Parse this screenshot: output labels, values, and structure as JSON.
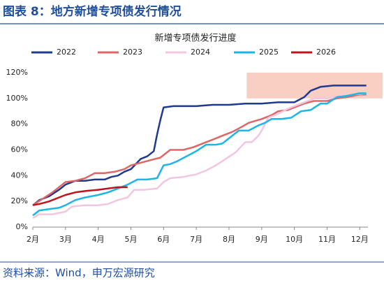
{
  "header": {
    "title": "图表 8：地方新增专项债发行情况"
  },
  "chart_data": {
    "type": "line",
    "title": "新增专项债发行进度",
    "xlim": [
      2,
      12.25
    ],
    "xticks": [
      {
        "value": 2,
        "label": "2月"
      },
      {
        "value": 3,
        "label": "3月"
      },
      {
        "value": 4,
        "label": "4月"
      },
      {
        "value": 5,
        "label": "5月"
      },
      {
        "value": 6,
        "label": "6月"
      },
      {
        "value": 7,
        "label": "7月"
      },
      {
        "value": 8,
        "label": "8月"
      },
      {
        "value": 9,
        "label": "9月"
      },
      {
        "value": 10,
        "label": "10月"
      },
      {
        "value": 11,
        "label": "11月"
      },
      {
        "value": 12,
        "label": "12月"
      }
    ],
    "ylim": [
      0,
      120
    ],
    "yticks": [
      {
        "value": 0,
        "label": "0%"
      },
      {
        "value": 20,
        "label": "20%"
      },
      {
        "value": 40,
        "label": "40%"
      },
      {
        "value": 60,
        "label": "60%"
      },
      {
        "value": 80,
        "label": "80%"
      },
      {
        "value": 100,
        "label": "100%"
      },
      {
        "value": 120,
        "label": "120%"
      }
    ],
    "grid": false,
    "legend": "top",
    "shaded_region": {
      "x": [
        8.54,
        12.7
      ],
      "y": [
        100,
        120
      ],
      "color": "#f9cfc3"
    },
    "series": [
      {
        "name": "2022",
        "color": "#1f3a8f",
        "x": [
          2,
          2.2,
          2.5,
          2.8,
          3.0,
          3.3,
          3.6,
          3.9,
          4.2,
          4.4,
          4.6,
          4.8,
          5.0,
          5.3,
          5.5,
          5.7,
          5.8,
          5.9,
          6.0,
          6.3,
          7.0,
          7.5,
          8.0,
          8.5,
          9.0,
          9.5,
          10.0,
          10.3,
          10.5,
          10.8,
          11.2,
          11.6,
          12.0,
          12.2
        ],
        "values": [
          17,
          21,
          24,
          29,
          33,
          36,
          36,
          37,
          37,
          39,
          40,
          43,
          45,
          53,
          55,
          59,
          72,
          83,
          93,
          94,
          94,
          95,
          95,
          96,
          96,
          97,
          97,
          101,
          106,
          109,
          110,
          110,
          110,
          110
        ]
      },
      {
        "name": "2023",
        "color": "#e06666",
        "x": [
          2,
          2.3,
          2.6,
          3.0,
          3.3,
          3.6,
          3.9,
          4.2,
          4.5,
          4.8,
          5.0,
          5.3,
          5.6,
          5.9,
          6.0,
          6.2,
          6.6,
          6.9,
          7.2,
          7.5,
          7.8,
          8.1,
          8.4,
          8.6,
          9.0,
          9.3,
          9.5,
          9.8,
          10.0,
          10.3,
          10.6,
          11.0,
          11.3,
          11.6,
          12.0,
          12.2
        ],
        "values": [
          17,
          22,
          27,
          35,
          36,
          38,
          42,
          42,
          43,
          45,
          48,
          50,
          52,
          54,
          56,
          60,
          60,
          62,
          65,
          68,
          71,
          74,
          78,
          81,
          84,
          87,
          90,
          91,
          93,
          96,
          98,
          98,
          100,
          101,
          103,
          103
        ]
      },
      {
        "name": "2024",
        "color": "#f2c6e0",
        "x": [
          2,
          2.2,
          2.6,
          3.0,
          3.2,
          3.6,
          4.0,
          4.3,
          4.6,
          4.9,
          5.1,
          5.4,
          5.8,
          6.0,
          6.2,
          6.6,
          7.0,
          7.3,
          7.6,
          7.9,
          8.2,
          8.5,
          8.7,
          8.9,
          9.0,
          9.2,
          9.5,
          9.8,
          10.0,
          10.3,
          10.6,
          11.0,
          11.4,
          11.8,
          12.2
        ],
        "values": [
          7,
          10,
          10,
          12,
          16,
          17,
          17,
          18,
          21,
          23,
          29,
          29,
          30,
          35,
          38,
          39,
          41,
          44,
          48,
          53,
          58,
          66,
          66,
          71,
          75,
          85,
          88,
          92,
          94,
          97,
          100,
          100,
          102,
          103,
          104
        ]
      },
      {
        "name": "2025",
        "color": "#1bb5e8",
        "x": [
          2,
          2.2,
          2.5,
          2.8,
          3.0,
          3.3,
          3.6,
          4.0,
          4.3,
          4.6,
          4.9,
          5.2,
          5.5,
          5.8,
          6.0,
          6.2,
          6.4,
          6.7,
          7.0,
          7.3,
          7.6,
          7.8,
          8.0,
          8.3,
          8.6,
          8.9,
          9.1,
          9.3,
          9.6,
          9.9,
          10.2,
          10.5,
          10.8,
          11.0,
          11.3,
          11.6,
          12.0,
          12.2
        ],
        "values": [
          9,
          13,
          14,
          15,
          17,
          21,
          23,
          25,
          27,
          30,
          33,
          37,
          37,
          38,
          48,
          49,
          51,
          55,
          59,
          64,
          64,
          65,
          69,
          75,
          75,
          79,
          81,
          84,
          84,
          85,
          90,
          91,
          96,
          96,
          101,
          102,
          104,
          104
        ]
      },
      {
        "name": "2026",
        "color": "#c0141c",
        "x": [
          2,
          2.2,
          2.5,
          2.8,
          3.0,
          3.3,
          3.6,
          4.0,
          4.3,
          4.6,
          4.9
        ],
        "values": [
          17,
          18,
          20,
          23,
          25,
          27,
          28,
          29,
          30,
          31,
          31
        ]
      }
    ]
  },
  "footer": {
    "source": "资料来源：Wind，申万宏源研究"
  }
}
